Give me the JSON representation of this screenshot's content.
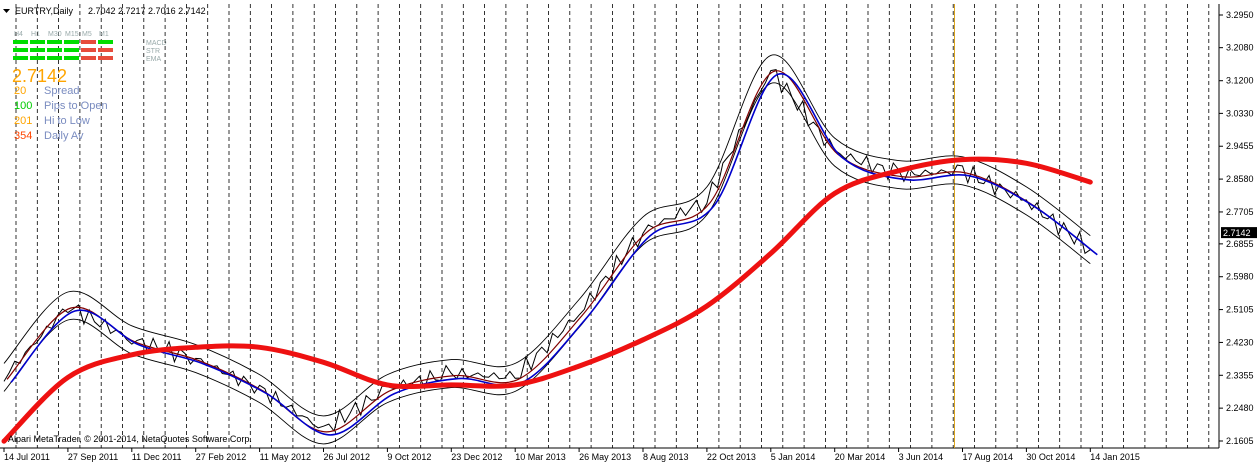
{
  "header": {
    "symbol": "EURTRY,Daily",
    "ohlc": "2.7042 2.7217 2.7016 2.7142"
  },
  "panel": {
    "timeframes": [
      "H4",
      "H1",
      "M30",
      "M15",
      "M5",
      "M1"
    ],
    "indicators": [
      "MACD",
      "STR",
      "EMA"
    ],
    "price": "2.7142",
    "stats": [
      {
        "value": "20",
        "label": "Spread",
        "value_color": "#ffa500",
        "label_color": "#7a8cc0"
      },
      {
        "value": "100",
        "label": "Pips to Open",
        "value_color": "#00cc00",
        "label_color": "#7a8cc0"
      },
      {
        "value": "201",
        "label": "Hi to Low",
        "value_color": "#ffa500",
        "label_color": "#7a8cc0"
      },
      {
        "value": "354",
        "label": "Daily Av",
        "value_color": "#ff4500",
        "label_color": "#7a8cc0"
      }
    ],
    "grid_colors": [
      [
        "#00dd00",
        "#00dd00",
        "#00dd00",
        "#00dd00",
        "#e74c3c",
        "#00dd00"
      ],
      [
        "#00dd00",
        "#00dd00",
        "#00dd00",
        "#00dd00",
        "#e74c3c",
        "#e74c3c"
      ],
      [
        "#00dd00",
        "#00dd00",
        "#00dd00",
        "#00dd00",
        "#e74c3c",
        "#e74c3c"
      ]
    ]
  },
  "copyright": "Alpari MetaTrader, © 2001-2014, NetaQuotes Software Corp.",
  "current_price_label": "2.7142",
  "chart_data": {
    "type": "line",
    "symbol": "EURTRY",
    "timeframe": "Daily",
    "y_ticks": [
      "3.2950",
      "3.2080",
      "3.1200",
      "3.0330",
      "2.9455",
      "2.8580",
      "2.7705",
      "2.6855",
      "2.5980",
      "2.5105",
      "2.4230",
      "2.3355",
      "2.2480",
      "2.1605"
    ],
    "ylim": [
      2.1605,
      3.295
    ],
    "x_ticks": [
      "14 Jul 2011",
      "27 Sep 2011",
      "11 Dec 2011",
      "27 Feb 2012",
      "11 May 2012",
      "26 Jul 2012",
      "9 Oct 2012",
      "23 Dec 2012",
      "10 Mar 2013",
      "26 May 2013",
      "8 Aug 2013",
      "22 Oct 2013",
      "5 Jan 2014",
      "20 Mar 2014",
      "3 Jun 2014",
      "17 Aug 2014",
      "30 Oct 2014",
      "14 Jan 2015"
    ],
    "series": [
      {
        "color": "#000000",
        "x": [
          "14 Jul 2011",
          "27 Sep 2011",
          "11 Dec 2011",
          "27 Feb 2012",
          "11 May 2012",
          "26 Jul 2012",
          "9 Oct 2012",
          "23 Dec 2012",
          "10 Mar 2013",
          "26 May 2013",
          "8 Aug 2013",
          "22 Oct 2013",
          "5 Jan 2014",
          "20 Mar 2014",
          "3 Jun 2014",
          "17 Aug 2014",
          "30 Oct 2014",
          "14 Jan 2015"
        ],
        "values": [
          2.33,
          2.52,
          2.43,
          2.38,
          2.3,
          2.19,
          2.3,
          2.34,
          2.33,
          2.5,
          2.72,
          2.8,
          3.15,
          2.93,
          2.87,
          2.88,
          2.8,
          2.67
        ]
      },
      {
        "color": "#ee1111",
        "x": [
          "14 Jul 2011",
          "27 Sep 2011",
          "11 Dec 2011",
          "27 Feb 2012",
          "11 May 2012",
          "26 Jul 2012",
          "9 Oct 2012",
          "23 Dec 2012",
          "10 Mar 2013",
          "26 May 2013",
          "8 Aug 2013",
          "22 Oct 2013",
          "5 Jan 2014",
          "20 Mar 2014",
          "3 Jun 2014",
          "17 Aug 2014",
          "30 Oct 2014",
          "14 Jan 2015"
        ],
        "values": [
          2.16,
          2.33,
          2.39,
          2.41,
          2.41,
          2.37,
          2.31,
          2.31,
          2.31,
          2.36,
          2.43,
          2.52,
          2.66,
          2.82,
          2.88,
          2.91,
          2.9,
          2.85
        ]
      }
    ],
    "vertical_marker": "17 Aug 2014",
    "grid": true
  }
}
